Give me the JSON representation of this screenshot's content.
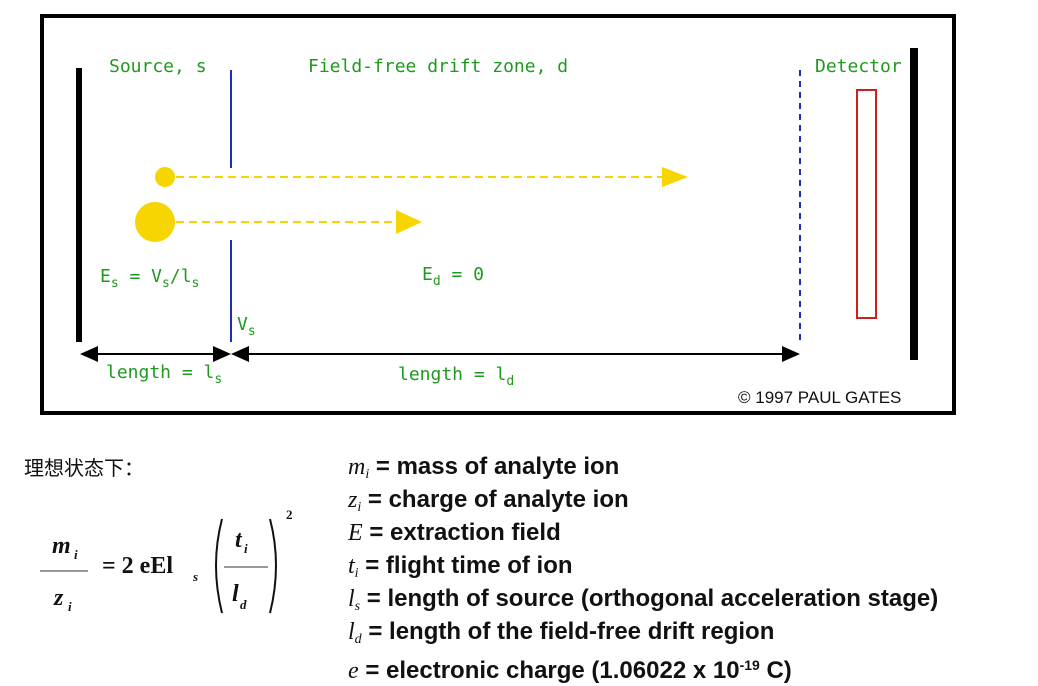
{
  "diagram": {
    "labels": {
      "source": "Source, s",
      "drift_zone": "Field-free drift zone, d",
      "detector": "Detector",
      "es_main": "E",
      "es_sub": "s",
      "es_mid": " = V",
      "es_sub2": "s",
      "es_tail": "/l",
      "es_sub3": "s",
      "ed_main": "E",
      "ed_sub": "d",
      "ed_tail": " = 0",
      "vs_main": "V",
      "vs_sub": "s",
      "ls_main": "length = l",
      "ls_sub": "s",
      "ld_main": "length = l",
      "ld_sub": "d",
      "copyright": "© 1997 PAUL GATES"
    },
    "colors": {
      "frame": "#000000",
      "grid": "#1f2fb0",
      "ion": "#f7d500",
      "text": "#1f9a1f",
      "detector": "#cc1f1f"
    }
  },
  "caption": "理想状态下：",
  "formula": {
    "num": "m",
    "num_sub": "i",
    "den": "z",
    "den_sub": "i",
    "rhs": "= 2 eEl",
    "rhs_sub": "s",
    "frac_num": "t",
    "frac_num_sub": "i",
    "frac_den": "l",
    "frac_den_sub": "d",
    "exponent": "2"
  },
  "definitions": [
    {
      "sym": "m",
      "sub": "i",
      "text": " = mass of analyte ion"
    },
    {
      "sym": "z",
      "sub": "i",
      "text": " = charge of analyte ion"
    },
    {
      "sym": "E",
      "sub": "",
      "text": " = extraction field"
    },
    {
      "sym": "t",
      "sub": "i",
      "text": " = flight time of ion"
    },
    {
      "sym": "l",
      "sub": "s",
      "text": " = length of source (orthogonal acceleration stage)"
    },
    {
      "sym": "l",
      "sub": "d",
      "text": " = length of the field-free drift region"
    },
    {
      "sym": "e",
      "sub": "",
      "text": " = electronic charge (1.06022 x 10",
      "sup": "-19",
      "tail": " C)"
    }
  ]
}
